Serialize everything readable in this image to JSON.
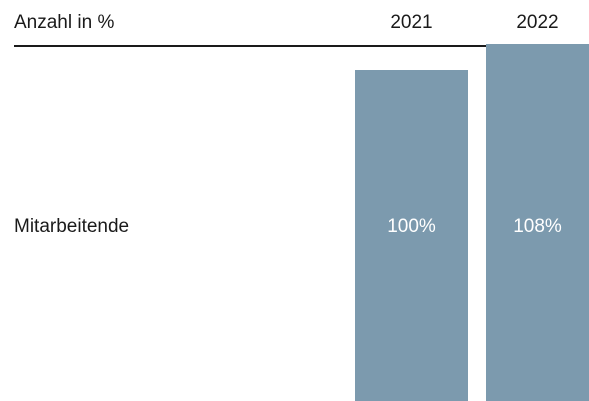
{
  "header": {
    "title": "Anzahl in %"
  },
  "colors": {
    "bar": "#7c9aae",
    "bar_label": "#ffffff",
    "text": "#1a1a1a",
    "rule": "#1a1a1a"
  },
  "chart_data": {
    "type": "bar",
    "title": "Anzahl in %",
    "categories": [
      "2021",
      "2022"
    ],
    "row_label": "Mitarbeitende",
    "values": [
      100,
      108
    ],
    "value_labels": [
      "100%",
      "108%"
    ],
    "unit": "%",
    "ylim": [
      0,
      108
    ],
    "grid": false,
    "legend": "none"
  }
}
